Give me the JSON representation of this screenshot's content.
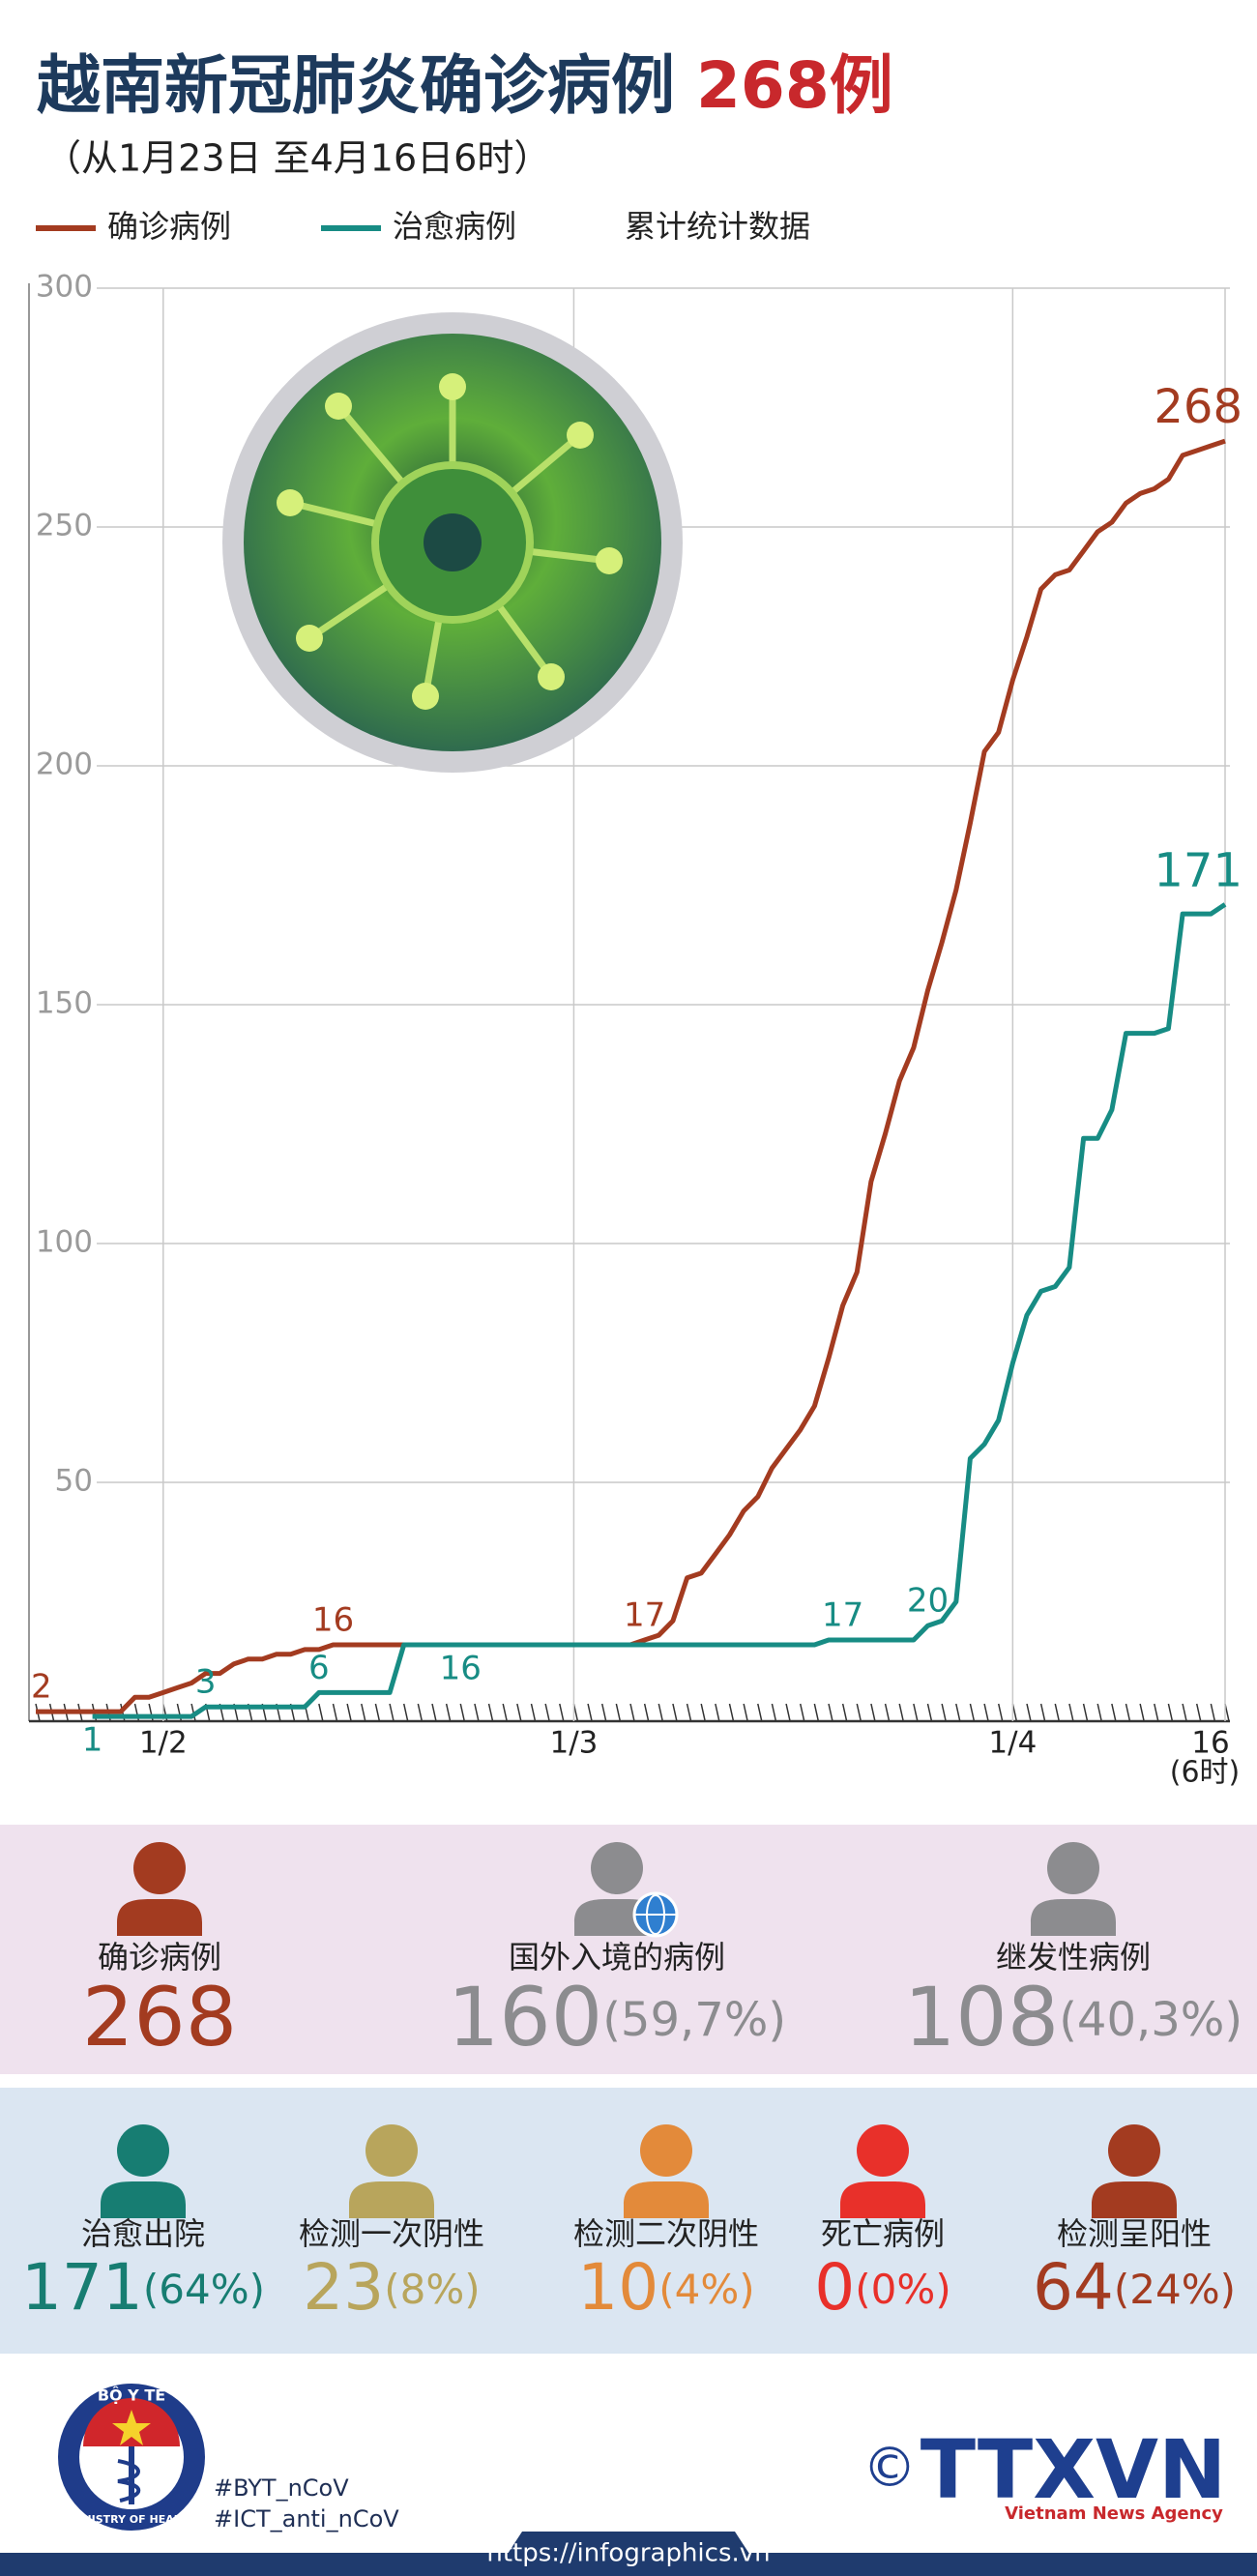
{
  "header": {
    "title": "越南新冠肺炎确诊病例",
    "title_highlight": "268例",
    "subtitle": "（从1月23日 至4月16日6时）"
  },
  "chart_data": {
    "type": "line",
    "note": "累计统计数据",
    "x_unit": "(6时)",
    "categories": [
      null,
      null,
      null,
      null,
      null,
      null,
      null,
      null,
      null,
      "1/2",
      null,
      null,
      null,
      null,
      null,
      null,
      null,
      null,
      null,
      null,
      null,
      null,
      null,
      null,
      null,
      null,
      null,
      null,
      null,
      null,
      null,
      null,
      null,
      null,
      null,
      null,
      null,
      null,
      "1/3",
      null,
      null,
      null,
      null,
      null,
      null,
      null,
      null,
      null,
      null,
      null,
      null,
      null,
      null,
      null,
      null,
      null,
      null,
      null,
      null,
      null,
      null,
      null,
      null,
      null,
      null,
      null,
      null,
      null,
      null,
      "1/4",
      null,
      null,
      null,
      null,
      null,
      null,
      null,
      null,
      null,
      null,
      null,
      null,
      null,
      null,
      "16"
    ],
    "series": [
      {
        "name": "确诊病例",
        "color": "#a33b20",
        "values": [
          2,
          2,
          2,
          2,
          2,
          2,
          2,
          5,
          5,
          6,
          7,
          8,
          10,
          10,
          12,
          13,
          13,
          14,
          14,
          15,
          15,
          16,
          16,
          16,
          16,
          16,
          16,
          16,
          16,
          16,
          16,
          16,
          16,
          16,
          16,
          16,
          16,
          16,
          16,
          16,
          16,
          16,
          16,
          17,
          18,
          21,
          30,
          31,
          35,
          39,
          44,
          47,
          53,
          57,
          61,
          66,
          76,
          87,
          94,
          113,
          123,
          134,
          141,
          153,
          163,
          174,
          188,
          203,
          207,
          218,
          227,
          237,
          240,
          241,
          245,
          249,
          251,
          255,
          257,
          258,
          260,
          265,
          266,
          267,
          268
        ],
        "labels": [
          0,
          21,
          43,
          84
        ]
      },
      {
        "name": "治愈病例",
        "color": "#178c84",
        "values": [
          null,
          null,
          null,
          null,
          1,
          1,
          1,
          1,
          1,
          1,
          1,
          1,
          3,
          3,
          3,
          3,
          3,
          3,
          3,
          3,
          6,
          6,
          6,
          6,
          6,
          6,
          16,
          16,
          16,
          16,
          16,
          16,
          16,
          16,
          16,
          16,
          16,
          16,
          16,
          16,
          16,
          16,
          16,
          16,
          16,
          16,
          16,
          16,
          16,
          16,
          16,
          16,
          16,
          16,
          16,
          16,
          17,
          17,
          17,
          17,
          17,
          17,
          17,
          20,
          21,
          25,
          55,
          58,
          63,
          75,
          85,
          90,
          91,
          95,
          122,
          122,
          128,
          144,
          144,
          144,
          145,
          169,
          169,
          169,
          171
        ],
        "labels": [
          4,
          12,
          20,
          30,
          57,
          63,
          84
        ]
      }
    ],
    "ylim": [
      0,
      300
    ],
    "yticks": [
      50,
      100,
      150,
      200,
      250,
      300
    ],
    "grid": true
  },
  "stats": {
    "origin": [
      {
        "label": "确诊病例",
        "value": 268,
        "color": "#a33b20"
      },
      {
        "label": "国外入境的病例",
        "value": 160,
        "share": "(59,7%)",
        "color": "#8c8c8f"
      },
      {
        "label": "继发性病例",
        "value": 108,
        "share": "(40,3%)",
        "color": "#8c8c8f"
      }
    ],
    "outcomes": [
      {
        "label": "治愈出院",
        "value": 171,
        "share": "(64%)",
        "color": "#177d72"
      },
      {
        "label": "检测一次阴性",
        "value": 23,
        "share": "(8%)",
        "color": "#b8a55c"
      },
      {
        "label": "检测二次阴性",
        "value": 10,
        "share": "(4%)",
        "color": "#e38a3a"
      },
      {
        "label": "死亡病例",
        "value": 0,
        "share": "(0%)",
        "color": "#e8302a"
      },
      {
        "label": "检测呈阳性",
        "value": 64,
        "share": "(24%)",
        "color": "#a33b20"
      }
    ]
  },
  "footer": {
    "logo_top": "BỘ Y TẾ",
    "logo_bottom": "MINISTRY OF HEALTH",
    "hashtags": [
      "#BYT_nCoV",
      "#ICT_anti_nCoV"
    ],
    "copyright": "©",
    "agency": "TTXVN",
    "agency_sub": "Vietnam News Agency",
    "url": "https://infographics.vn"
  }
}
